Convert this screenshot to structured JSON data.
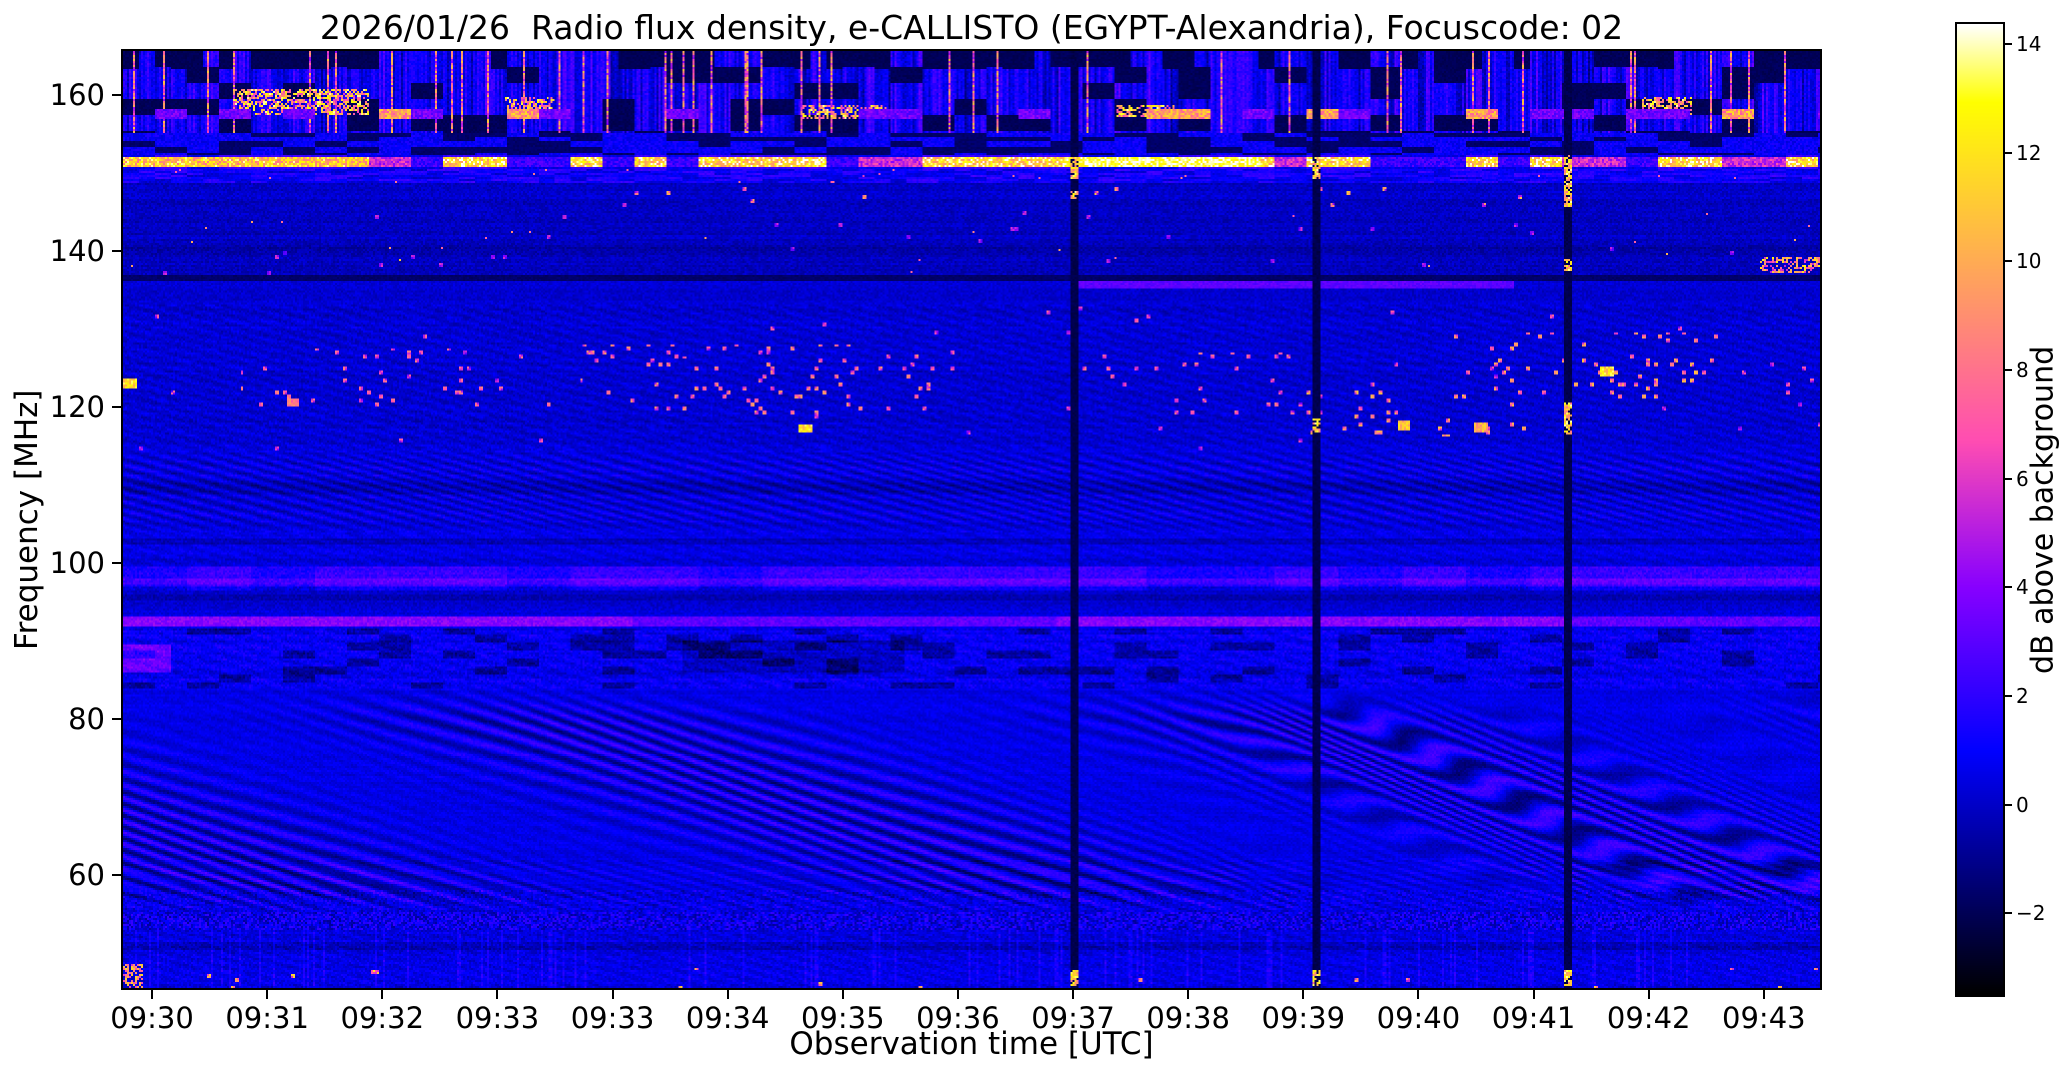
{
  "page": {
    "background": "#ffffff",
    "text_color": "#000000"
  },
  "chart_data": {
    "type": "heatmap",
    "title": "2026/01/26  Radio flux density, e-CALLISTO (EGYPT-Alexandria), Focuscode: 02",
    "xlabel": "Observation time [UTC]",
    "ylabel": "Frequency [MHz]",
    "x_ticks": [
      "09:30",
      "09:31",
      "09:32",
      "09:33",
      "09:33",
      "09:34",
      "09:35",
      "09:36",
      "09:37",
      "09:38",
      "09:39",
      "09:40",
      "09:41",
      "09:42",
      "09:43"
    ],
    "y_ticks": [
      160,
      140,
      120,
      100,
      80,
      60
    ],
    "y_range_mhz": [
      45.5,
      165.6
    ],
    "grid": false,
    "legend": "none",
    "colorbar": {
      "label": "dB above background",
      "vmin": -3.5,
      "vmax": 14.37,
      "colormap": "gnuplot2",
      "ticks": [
        {
          "value": 14,
          "label": "14"
        },
        {
          "value": 12,
          "label": "12"
        },
        {
          "value": 10,
          "label": "10"
        },
        {
          "value": 8,
          "label": "8"
        },
        {
          "value": 6,
          "label": "6"
        },
        {
          "value": 4,
          "label": "4"
        },
        {
          "value": 2,
          "label": "2"
        },
        {
          "value": 0,
          "label": "0"
        },
        {
          "value": -2,
          "label": "−2"
        }
      ]
    },
    "features": {
      "description": "Solar radio spectrogram: bright carrier near 151 MHz, airband RFI speckles 115-130 MHz, ionospheric fringe waves 55-84 MHz, RFI streak band above 155 MHz, dark line at 136 MHz, three full-height dropout columns.",
      "bright_carrier_mhz": 151.4,
      "carrier_band": [
        150.6,
        152.3
      ],
      "block_band_mhz": [
        152.3,
        155.0
      ],
      "top_rfi_band_mhz": [
        155.0,
        165.6
      ],
      "airband_mhz": [
        114.5,
        133.0
      ],
      "fringe_band_mhz": [
        104.0,
        114.5
      ],
      "line_975": 97.6,
      "line_925": 92.5,
      "dark_line_mhz": 136.5,
      "blue_segment": {
        "f": 135.6,
        "t0": 0.56,
        "t1": 0.82
      },
      "wave_band_mhz": [
        55.2,
        84.0
      ],
      "noise_strip_mhz": [
        52.8,
        55.2
      ],
      "bottom_band_mhz": [
        45.5,
        52.8
      ],
      "top_bright_clusters": [
        [
          0.065,
          0.145,
          157.5,
          160.8
        ],
        [
          0.225,
          0.255,
          158.3,
          159.8
        ],
        [
          0.4,
          0.45,
          157.0,
          158.6
        ],
        [
          0.585,
          0.62,
          157.2,
          158.8
        ],
        [
          0.895,
          0.925,
          157.3,
          159.6
        ]
      ],
      "speckle_clusters": [
        [
          0.07,
          0.26,
          120.0,
          127.5,
          0.03,
          8
        ],
        [
          0.27,
          0.49,
          119.0,
          128.0,
          0.035,
          9
        ],
        [
          0.3,
          0.4,
          122.0,
          126.5,
          0.05,
          9
        ],
        [
          0.56,
          0.7,
          119.0,
          127.0,
          0.03,
          8
        ],
        [
          0.69,
          0.83,
          116.3,
          122.0,
          0.045,
          10
        ],
        [
          0.78,
          0.94,
          121.0,
          129.5,
          0.045,
          10
        ],
        [
          0.94,
          1.0,
          121.0,
          126.0,
          0.02,
          7
        ]
      ],
      "hot_dots": [
        [
          0.004,
          123.0,
          13
        ],
        [
          0.1,
          120.6,
          9
        ],
        [
          0.402,
          117.2,
          13
        ],
        [
          0.755,
          117.6,
          12
        ],
        [
          0.8,
          117.3,
          11
        ],
        [
          0.875,
          124.5,
          13
        ]
      ],
      "dropouts": [
        {
          "t": 0.561,
          "bright_f": [
            [
              149.2,
              151.9
            ],
            [
              146.6,
              147.8
            ],
            [
              45.8,
              47.8
            ]
          ]
        },
        {
          "t": 0.703,
          "bright_f": [
            [
              149.2,
              151.9
            ],
            [
              116.8,
              118.4
            ],
            [
              45.8,
              47.8
            ]
          ]
        },
        {
          "t": 0.852,
          "bright_f": [
            [
              145.5,
              152.2
            ],
            [
              116.5,
              120.5
            ],
            [
              137.5,
              139.0
            ],
            [
              45.8,
              47.8
            ]
          ]
        }
      ]
    }
  }
}
